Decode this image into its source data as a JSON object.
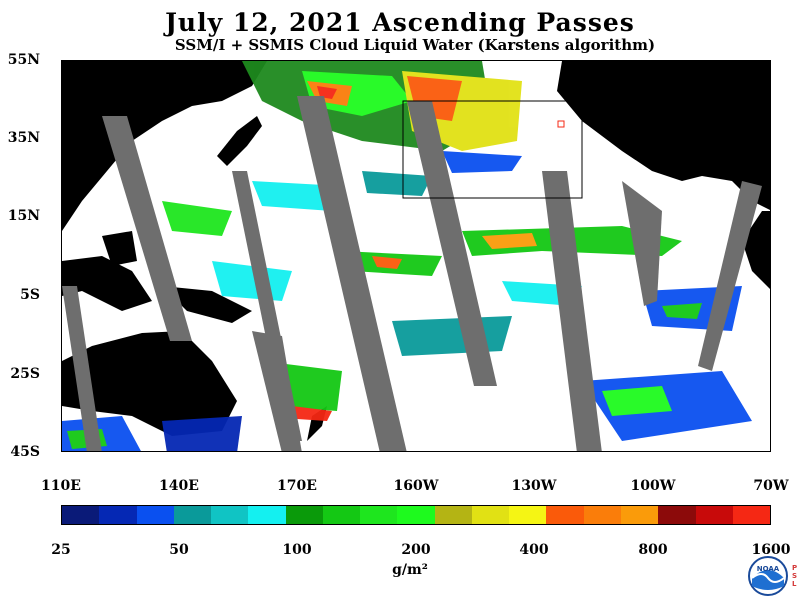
{
  "header": {
    "title": "July 12, 2021  Ascending Passes",
    "subtitle": "SSM/I + SSMIS Cloud Liquid Water (Karstens algorithm)"
  },
  "axes": {
    "lat_labels": [
      "55N",
      "35N",
      "15N",
      "5S",
      "25S",
      "45S"
    ],
    "lon_labels": [
      "110E",
      "140E",
      "170E",
      "160W",
      "130W",
      "100W",
      "70W"
    ]
  },
  "colorbar": {
    "colors": [
      "#0a1a78",
      "#0528b4",
      "#0a50f0",
      "#0a9a9a",
      "#10c4c4",
      "#14f0f0",
      "#0a9a0a",
      "#14c814",
      "#1ee61e",
      "#1efa1e",
      "#b4b414",
      "#e1e114",
      "#f5f514",
      "#fa5a0a",
      "#fa7d0a",
      "#fa9b0a",
      "#8c0a0a",
      "#c80a0a",
      "#f52814"
    ],
    "tick_labels": [
      "25",
      "50",
      "100",
      "200",
      "400",
      "800",
      "1600"
    ],
    "units": "g/m²"
  },
  "logo": {
    "icon": "noaa-logo-icon",
    "text": "NOAA",
    "side_text": "PSL"
  }
}
